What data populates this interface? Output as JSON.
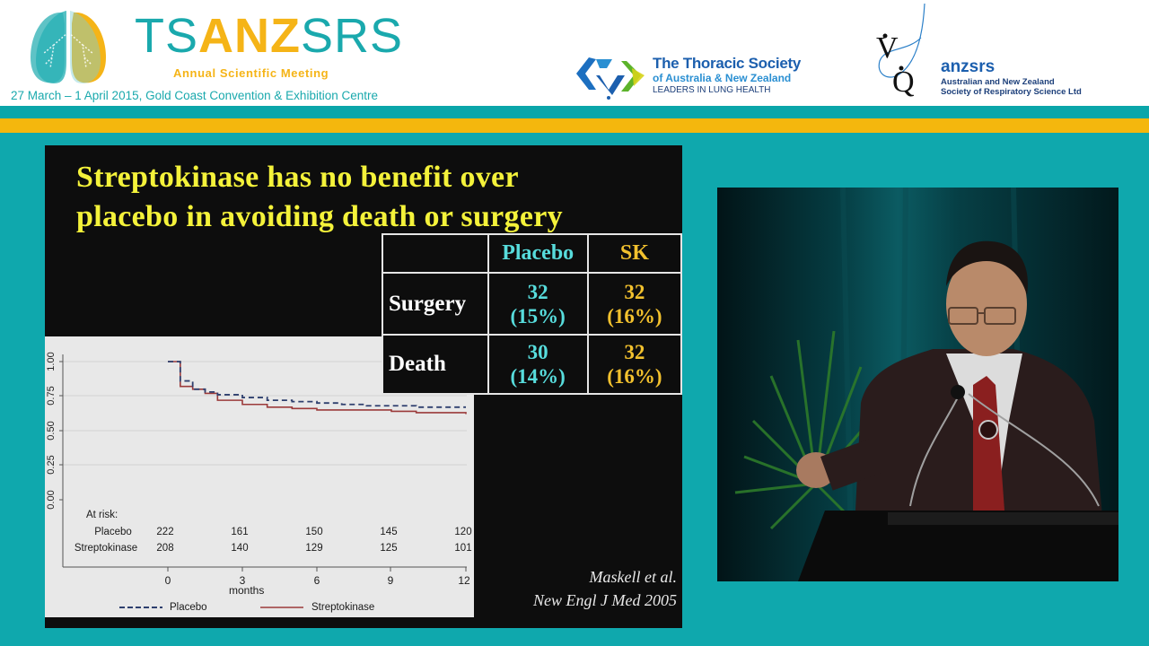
{
  "header": {
    "brand": {
      "part1": "TS",
      "part2": "ANZ",
      "part3": "SRS"
    },
    "subtitle": "Annual Scientific Meeting",
    "dates_venue": "27 March – 1 April 2015, Gold Coast Convention & Exhibition Centre",
    "sponsor1": {
      "line1": "The Thoracic Society",
      "line2": "of Australia & New Zealand",
      "line3": "LEADERS IN LUNG HEALTH"
    },
    "sponsor2": {
      "name": "anzsrs",
      "line1": "Australian and New Zealand",
      "line2": "Society of Respiratory Science Ltd"
    },
    "colors": {
      "teal": "#0aa6aa",
      "yellow": "#f4b70d"
    }
  },
  "slide": {
    "title_line1": "Streptokinase has no benefit over",
    "title_line2": "placebo in avoiding death or surgery",
    "table": {
      "headers": [
        "",
        "Placebo",
        "SK"
      ],
      "rows": [
        {
          "label": "Surgery",
          "placebo_n": "32",
          "placebo_pct": "(15%)",
          "sk_n": "32",
          "sk_pct": "(16%)"
        },
        {
          "label": "Death",
          "placebo_n": "30",
          "placebo_pct": "(14%)",
          "sk_n": "32",
          "sk_pct": "(16%)"
        }
      ]
    },
    "citation_line1": "Maskell et al.",
    "citation_line2": "New Engl J Med 2005"
  },
  "chart_data": {
    "type": "line",
    "title": "",
    "xlabel": "months",
    "ylabel": "",
    "x_ticks": [
      "0",
      "3",
      "6",
      "9",
      "12"
    ],
    "y_ticks": [
      "0.00",
      "0.25",
      "0.50",
      "0.75",
      "1.00"
    ],
    "xlim": [
      0,
      12
    ],
    "ylim": [
      0,
      1
    ],
    "grid": true,
    "legend_position": "bottom",
    "series": [
      {
        "name": "Placebo",
        "style": "dashed",
        "color": "#2e3f6e",
        "x": [
          0,
          0.5,
          1,
          1.5,
          2,
          3,
          4,
          5,
          6,
          7,
          8,
          9,
          10,
          11,
          12
        ],
        "values": [
          1.0,
          0.86,
          0.8,
          0.78,
          0.76,
          0.74,
          0.72,
          0.71,
          0.7,
          0.69,
          0.68,
          0.68,
          0.67,
          0.67,
          0.67
        ]
      },
      {
        "name": "Streptokinase",
        "style": "solid",
        "color": "#9b3a3a",
        "x": [
          0,
          0.5,
          1,
          1.5,
          2,
          3,
          4,
          5,
          6,
          7,
          8,
          9,
          10,
          11,
          12
        ],
        "values": [
          1.0,
          0.82,
          0.8,
          0.77,
          0.72,
          0.69,
          0.67,
          0.66,
          0.65,
          0.65,
          0.65,
          0.64,
          0.63,
          0.63,
          0.62
        ]
      }
    ],
    "at_risk": {
      "label": "At risk:",
      "rows": [
        {
          "group": "Placebo",
          "values": [
            "222",
            "161",
            "150",
            "145",
            "120"
          ]
        },
        {
          "group": "Streptokinase",
          "values": [
            "208",
            "140",
            "129",
            "125",
            "101"
          ]
        }
      ]
    },
    "legend": [
      {
        "label": "Placebo"
      },
      {
        "label": "Streptokinase"
      }
    ]
  }
}
